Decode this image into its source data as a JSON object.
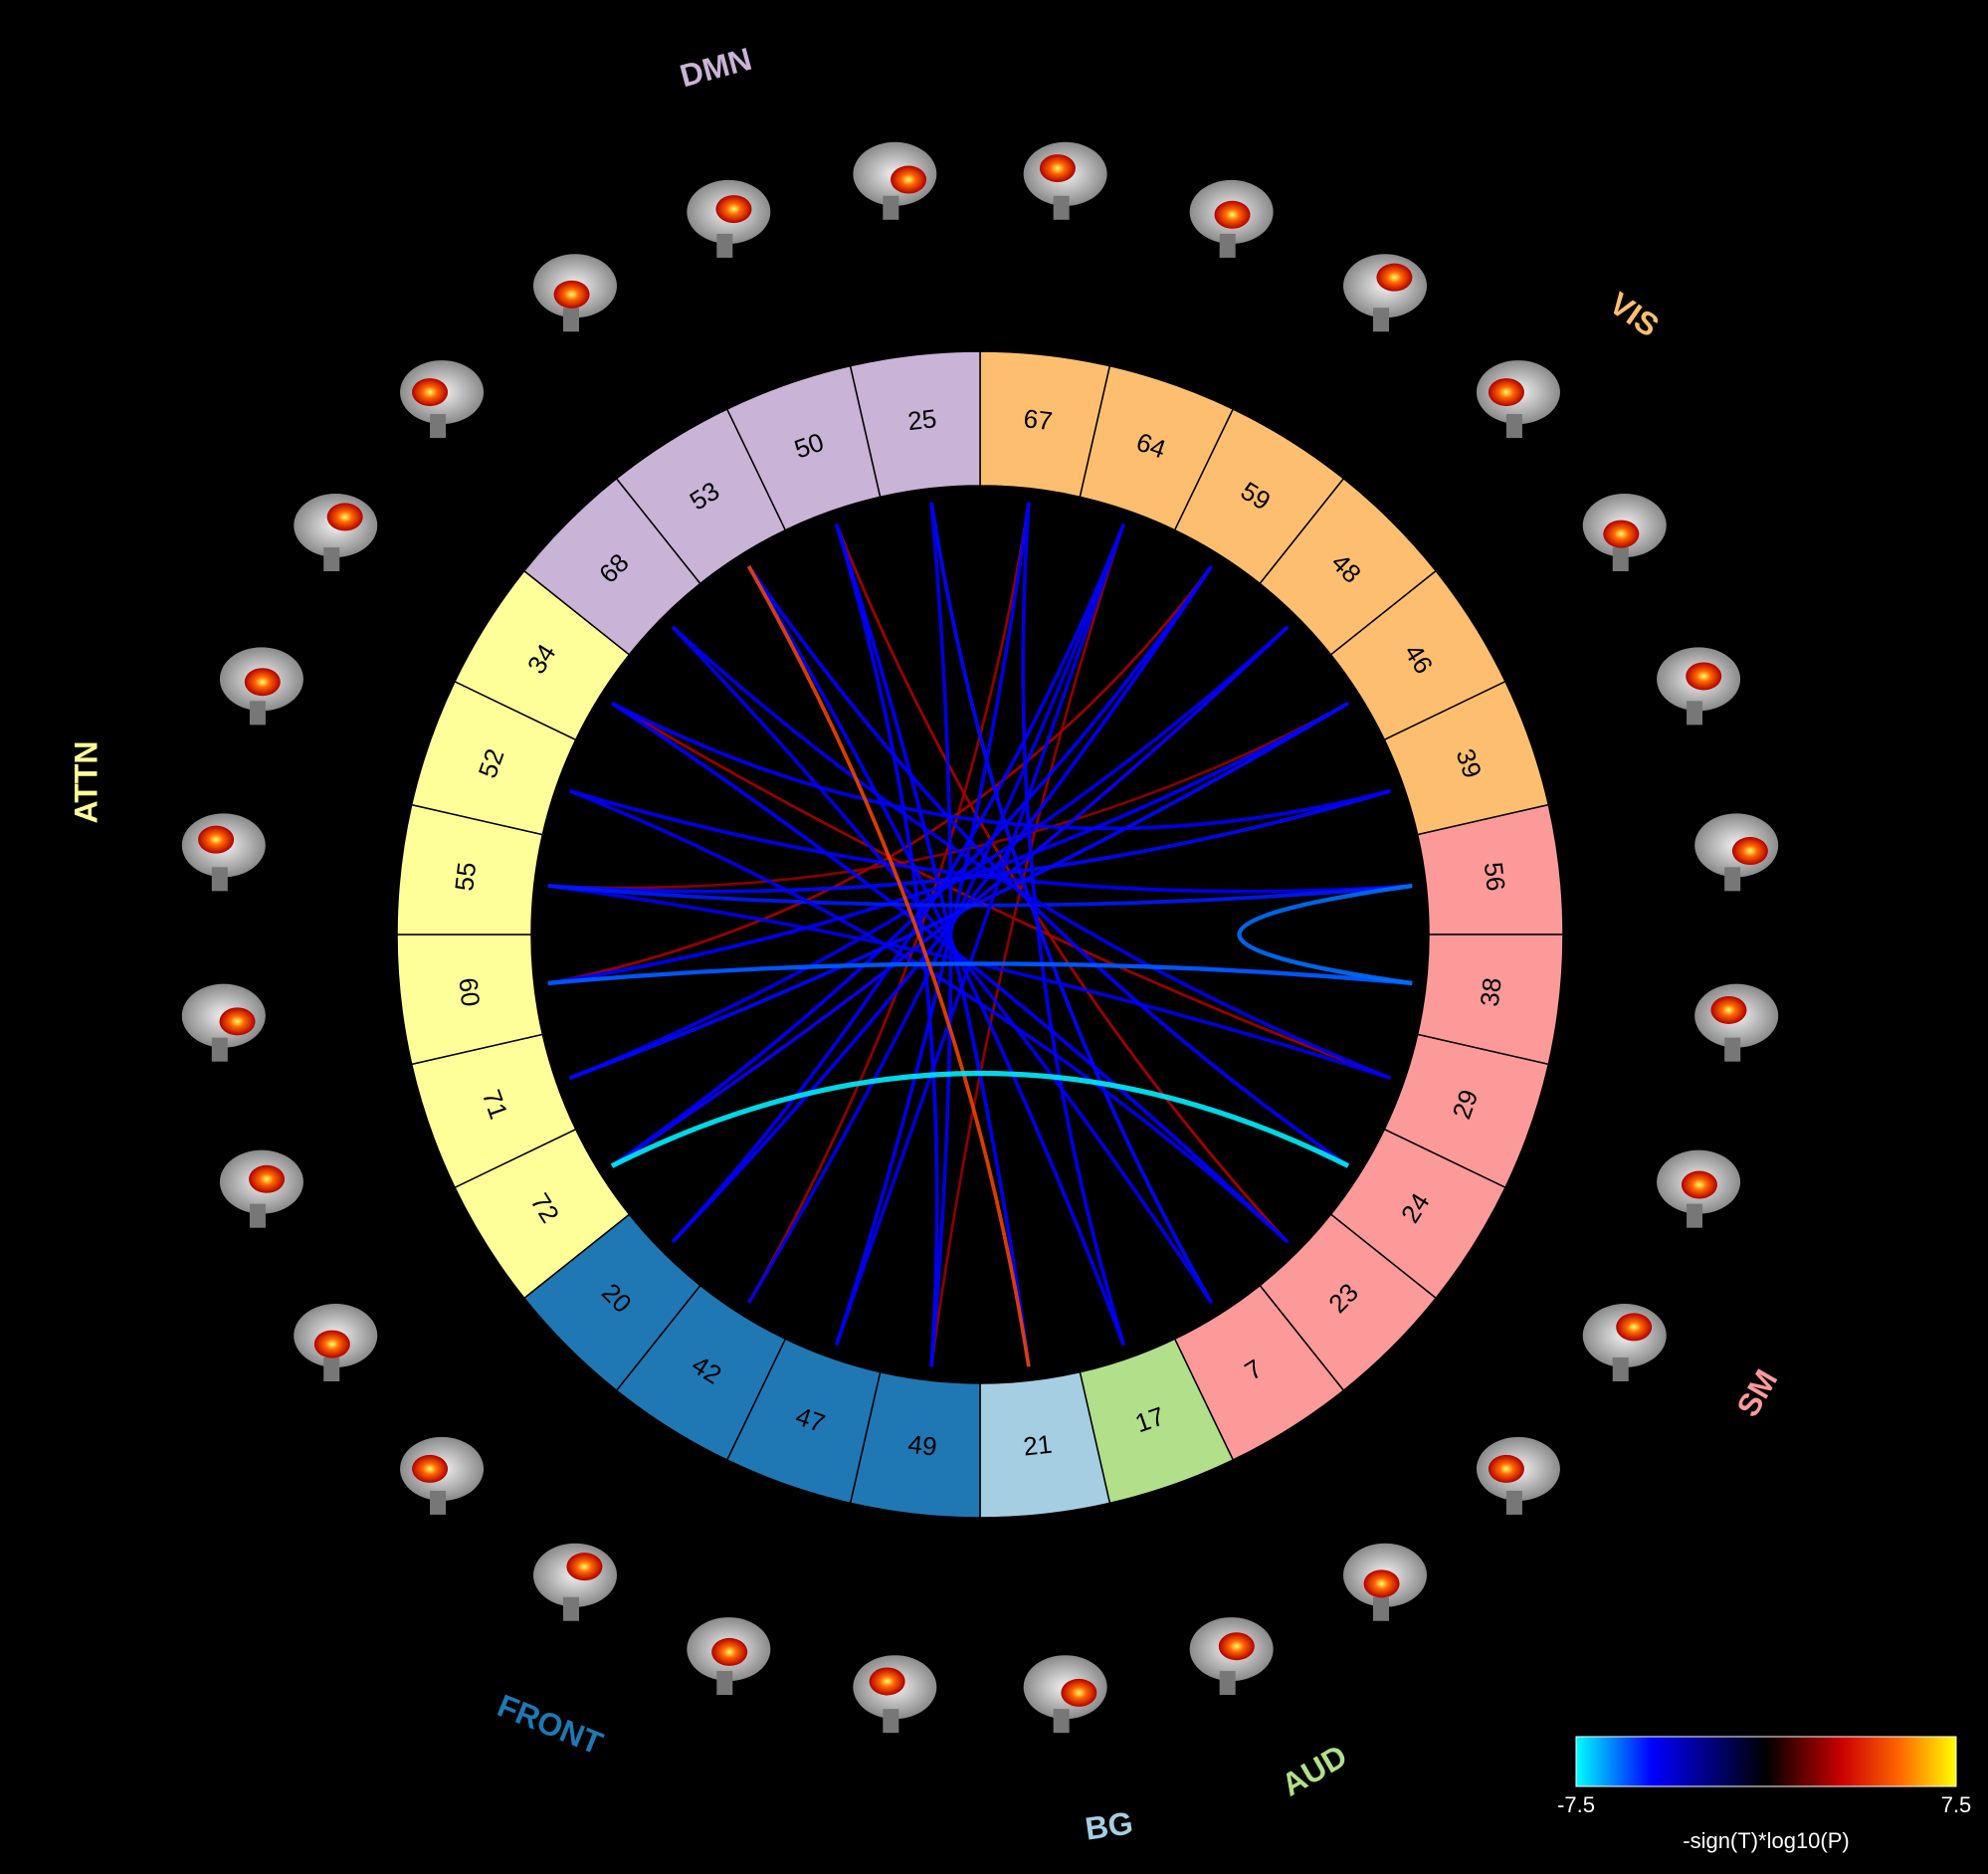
{
  "groups": [
    {
      "name": "VIS",
      "color": "#fdbf6f",
      "components": [
        "67",
        "64",
        "59",
        "48",
        "46",
        "39"
      ]
    },
    {
      "name": "SM",
      "color": "#fb9a99",
      "components": [
        "56",
        "38",
        "29",
        "24",
        "23",
        "7"
      ]
    },
    {
      "name": "AUD",
      "color": "#b2df8a",
      "components": [
        "17"
      ]
    },
    {
      "name": "BG",
      "color": "#a6cee3",
      "components": [
        "21"
      ]
    },
    {
      "name": "FRONT",
      "color": "#1f78b4",
      "components": [
        "49",
        "47",
        "42",
        "20"
      ]
    },
    {
      "name": "ATTN",
      "color": "#ffff99",
      "components": [
        "72",
        "71",
        "60",
        "55",
        "52",
        "34"
      ]
    },
    {
      "name": "DMN",
      "color": "#c9b3d7",
      "components": [
        "68",
        "53",
        "50",
        "25"
      ]
    }
  ],
  "connections": [
    {
      "from": "59",
      "to": "60",
      "value": 2.5
    },
    {
      "from": "48",
      "to": "72",
      "value": 2.3
    },
    {
      "from": "50",
      "to": "23",
      "value": 2.6
    },
    {
      "from": "67",
      "to": "42",
      "value": 2.4
    },
    {
      "from": "46",
      "to": "55",
      "value": 2.2
    },
    {
      "from": "34",
      "to": "29",
      "value": 2.5
    },
    {
      "from": "64",
      "to": "49",
      "value": 2.3
    },
    {
      "from": "50",
      "to": "49",
      "value": -4.5
    },
    {
      "from": "25",
      "to": "7",
      "value": -4.6
    },
    {
      "from": "64",
      "to": "20",
      "value": -4.4
    },
    {
      "from": "59",
      "to": "72",
      "value": -4.5
    },
    {
      "from": "48",
      "to": "71",
      "value": -4.3
    },
    {
      "from": "46",
      "to": "60",
      "value": -4.5
    },
    {
      "from": "39",
      "to": "55",
      "value": -4.6
    },
    {
      "from": "56",
      "to": "52",
      "value": -4.4
    },
    {
      "from": "29",
      "to": "55",
      "value": -4.2
    },
    {
      "from": "23",
      "to": "34",
      "value": -4.5
    },
    {
      "from": "7",
      "to": "68",
      "value": -4.3
    },
    {
      "from": "17",
      "to": "53",
      "value": -4.4
    },
    {
      "from": "21",
      "to": "50",
      "value": -4.5
    },
    {
      "from": "49",
      "to": "25",
      "value": -4.3
    },
    {
      "from": "47",
      "to": "67",
      "value": -4.4
    },
    {
      "from": "42",
      "to": "64",
      "value": -4.2
    },
    {
      "from": "20",
      "to": "59",
      "value": -4.5
    },
    {
      "from": "72",
      "to": "48",
      "value": -4.4
    },
    {
      "from": "71",
      "to": "46",
      "value": -4.6
    },
    {
      "from": "55",
      "to": "56",
      "value": -4.8
    },
    {
      "from": "34",
      "to": "39",
      "value": -4.4
    },
    {
      "from": "68",
      "to": "29",
      "value": -4.3
    },
    {
      "from": "53",
      "to": "24",
      "value": -4.5
    },
    {
      "from": "67",
      "to": "17",
      "value": -4.4
    },
    {
      "from": "52",
      "to": "23",
      "value": -4.3
    },
    {
      "from": "60",
      "to": "38",
      "value": -4.6
    },
    {
      "from": "64",
      "to": "47",
      "value": -4.2
    },
    {
      "from": "38",
      "to": "60",
      "value": -5.6
    },
    {
      "from": "56",
      "to": "38",
      "value": -5.8
    },
    {
      "from": "53",
      "to": "21",
      "value": 4.5
    },
    {
      "from": "24",
      "to": "72",
      "value": -7.3
    }
  ],
  "colorbar": {
    "min": -7.5,
    "max": 7.5,
    "ticks": [
      -7.5,
      7.5
    ],
    "label": "-sign(T)*log10(P)"
  }
}
